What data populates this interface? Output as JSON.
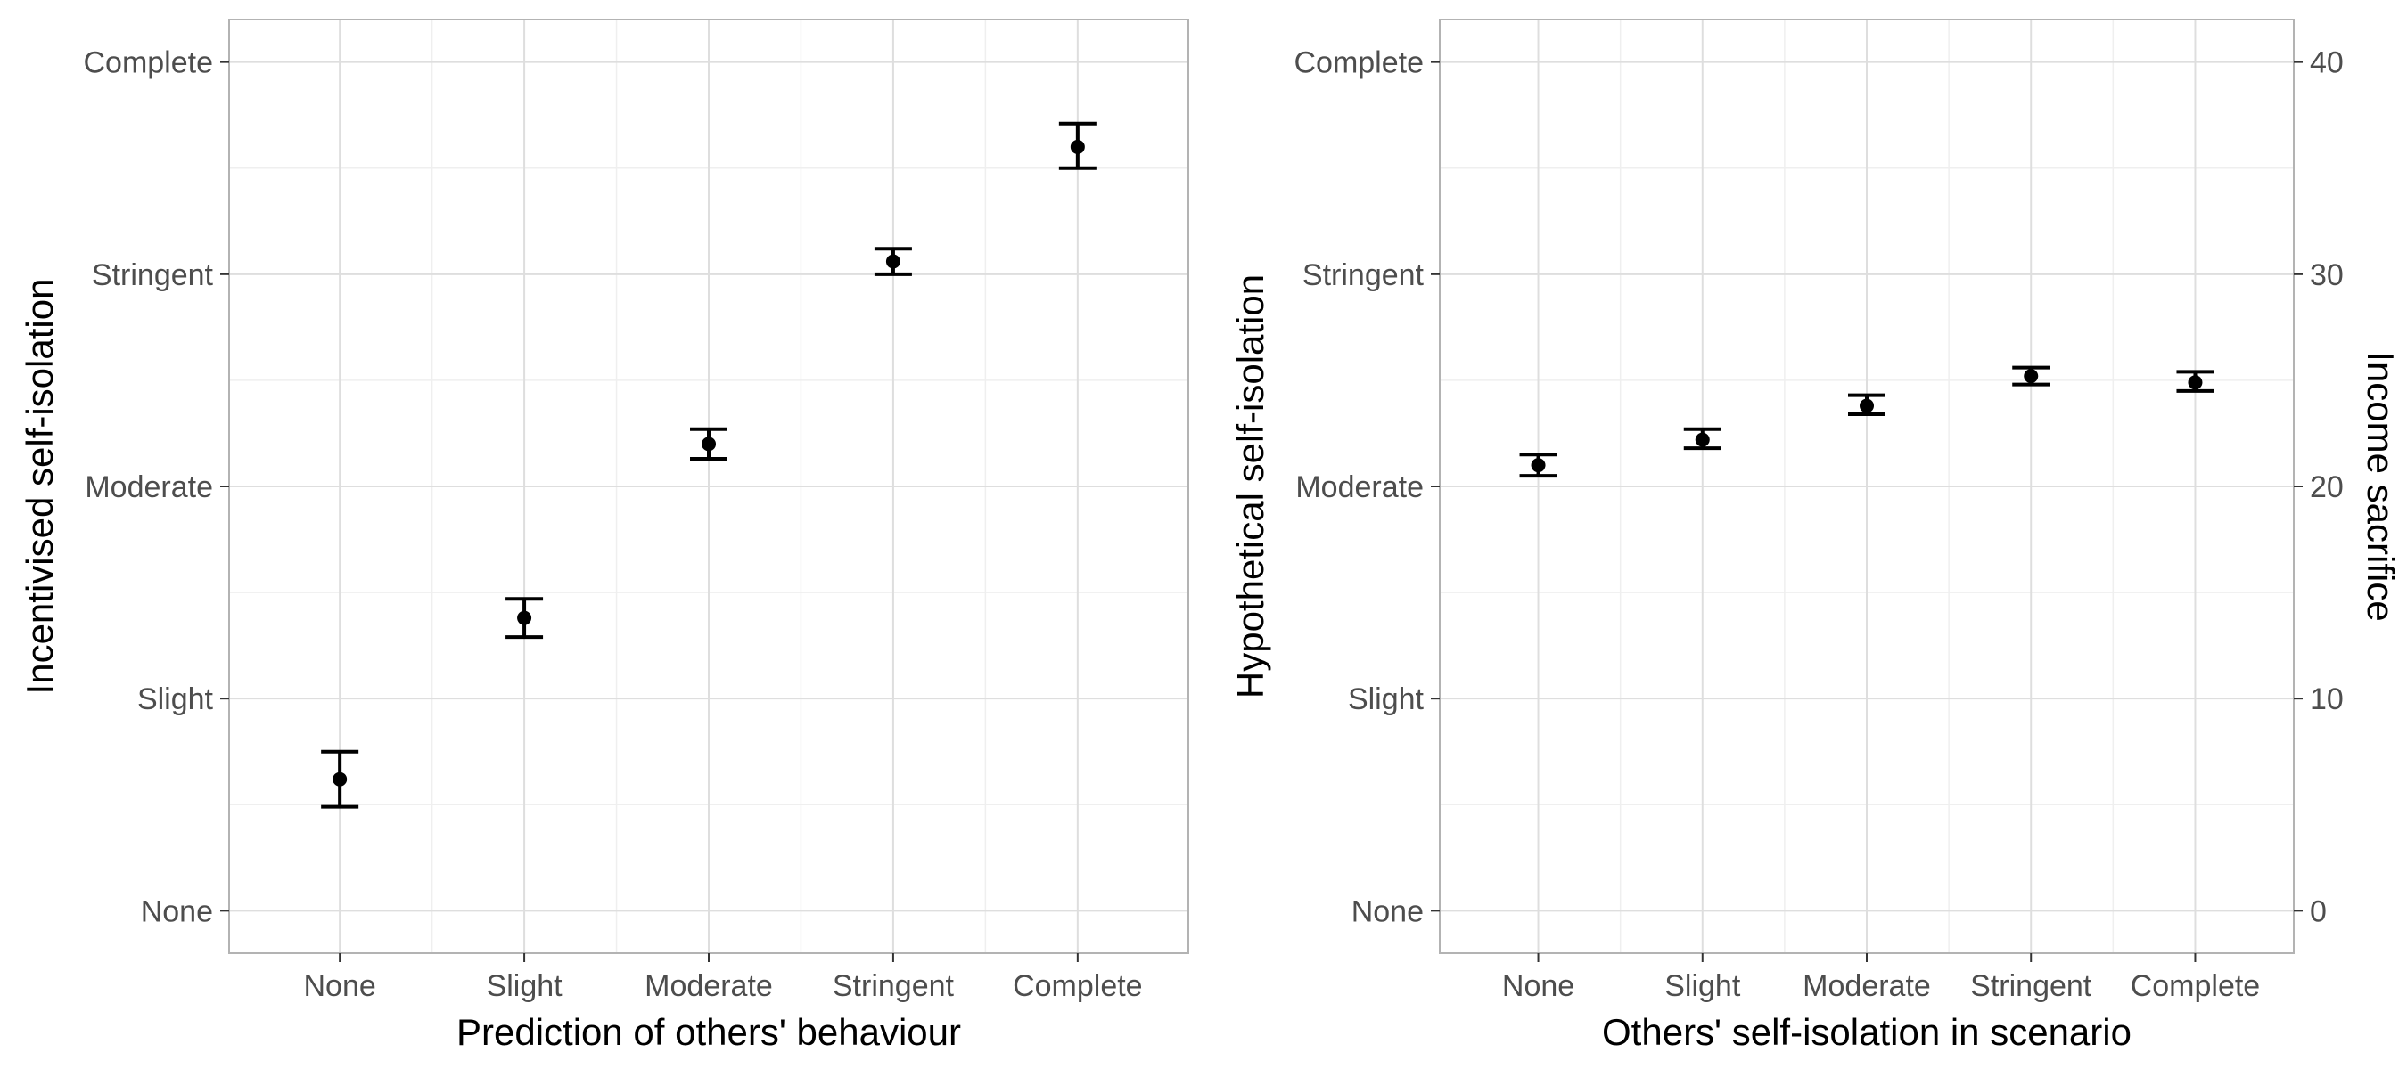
{
  "chart_data": [
    {
      "type": "scatter",
      "xlabel": "Prediction of others' behaviour",
      "ylabel": "Incentivised self-isolation",
      "categories": [
        "None",
        "Slight",
        "Moderate",
        "Stringent",
        "Complete"
      ],
      "y_tick_labels": [
        "None",
        "Slight",
        "Moderate",
        "Stringent",
        "Complete"
      ],
      "ylim": [
        -0.2,
        4.2
      ],
      "grid": true,
      "points": [
        {
          "x": "None",
          "y": 0.62,
          "lower": 0.49,
          "upper": 0.75
        },
        {
          "x": "Slight",
          "y": 1.38,
          "lower": 1.29,
          "upper": 1.47
        },
        {
          "x": "Moderate",
          "y": 2.2,
          "lower": 2.13,
          "upper": 2.27
        },
        {
          "x": "Stringent",
          "y": 3.06,
          "lower": 3.0,
          "upper": 3.12
        },
        {
          "x": "Complete",
          "y": 3.6,
          "lower": 3.5,
          "upper": 3.71
        }
      ]
    },
    {
      "type": "scatter",
      "xlabel": "Others' self-isolation in scenario",
      "ylabel": "Hypothetical self-isolation",
      "ylabel_right": "Income sacrifice",
      "categories": [
        "None",
        "Slight",
        "Moderate",
        "Stringent",
        "Complete"
      ],
      "y_tick_labels": [
        "None",
        "Slight",
        "Moderate",
        "Stringent",
        "Complete"
      ],
      "ylim": [
        -0.2,
        4.2
      ],
      "y2_ticks": [
        0,
        10,
        20,
        30,
        40
      ],
      "y2_lim": [
        -2,
        42
      ],
      "grid": true,
      "points": [
        {
          "x": "None",
          "y": 2.1,
          "lower": 2.05,
          "upper": 2.15
        },
        {
          "x": "Slight",
          "y": 2.22,
          "lower": 2.18,
          "upper": 2.27
        },
        {
          "x": "Moderate",
          "y": 2.38,
          "lower": 2.34,
          "upper": 2.43
        },
        {
          "x": "Stringent",
          "y": 2.52,
          "lower": 2.48,
          "upper": 2.56
        },
        {
          "x": "Complete",
          "y": 2.49,
          "lower": 2.45,
          "upper": 2.54
        }
      ]
    }
  ]
}
